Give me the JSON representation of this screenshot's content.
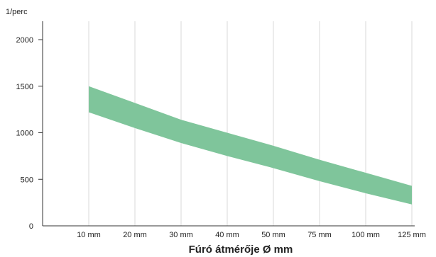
{
  "chart_data": {
    "type": "area",
    "title": "",
    "xlabel": "Fúró átmérője Ø mm",
    "ylabel": "1/perc",
    "categories": [
      "10 mm",
      "20 mm",
      "30 mm",
      "40 mm",
      "50 mm",
      "75 mm",
      "100 mm",
      "125 mm"
    ],
    "ylim": [
      0,
      2200
    ],
    "yticks": [
      0,
      500,
      1000,
      1500,
      2000
    ],
    "grid": {
      "vertical": true,
      "horizontal": false
    },
    "band": {
      "upper": [
        1500,
        1320,
        1140,
        1000,
        860,
        710,
        570,
        430
      ],
      "lower": [
        1220,
        1050,
        890,
        750,
        620,
        480,
        350,
        230
      ]
    },
    "colors": {
      "band": "#7fc59b",
      "grid": "#d9d9d9",
      "axis": "#333333"
    }
  }
}
